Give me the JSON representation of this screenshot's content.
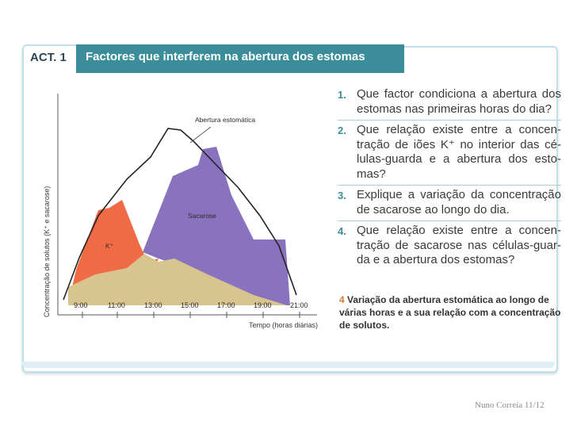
{
  "header": {
    "act_label": "ACT. 1",
    "title": "Factores que interferem na abertura dos estomas"
  },
  "chart": {
    "ylabel": "Concentração de solutos (K⁺ e sacarose)",
    "xlabel": "Tempo (horas diárias)",
    "annotation_opening": "Abertura estomática",
    "annotation_sucrose": "Sacarose",
    "annotation_potassium": "K⁺",
    "ticks": [
      "9:00",
      "11:00",
      "13:00",
      "15:00",
      "17:00",
      "19:00",
      "21:00"
    ],
    "colors": {
      "potassium": "#ef6a45",
      "sucrose": "#8a73be",
      "base": "#d8c48e",
      "opening_line": "#222222"
    }
  },
  "questions": [
    {
      "number": "1.",
      "text": "Que factor condiciona a abertura dos estomas nas primeiras horas do dia?"
    },
    {
      "number": "2.",
      "text": "Que relação existe entre a concen­tração de iões K⁺ no interior das cé­lulas-guarda e a abertura dos esto­mas?"
    },
    {
      "number": "3.",
      "text": "Explique a variação da concentração de sacarose ao longo do dia."
    },
    {
      "number": "4.",
      "text": "Que relação existe entre a concen­tração de sacarose nas células-guar­da e a abertura dos estomas?"
    }
  ],
  "caption": {
    "number": "4",
    "text": "Variação da abertura estomática ao longo de várias horas e a sua relação com a concentração de solutos."
  },
  "footer": "Nuno Correia 11/12"
}
